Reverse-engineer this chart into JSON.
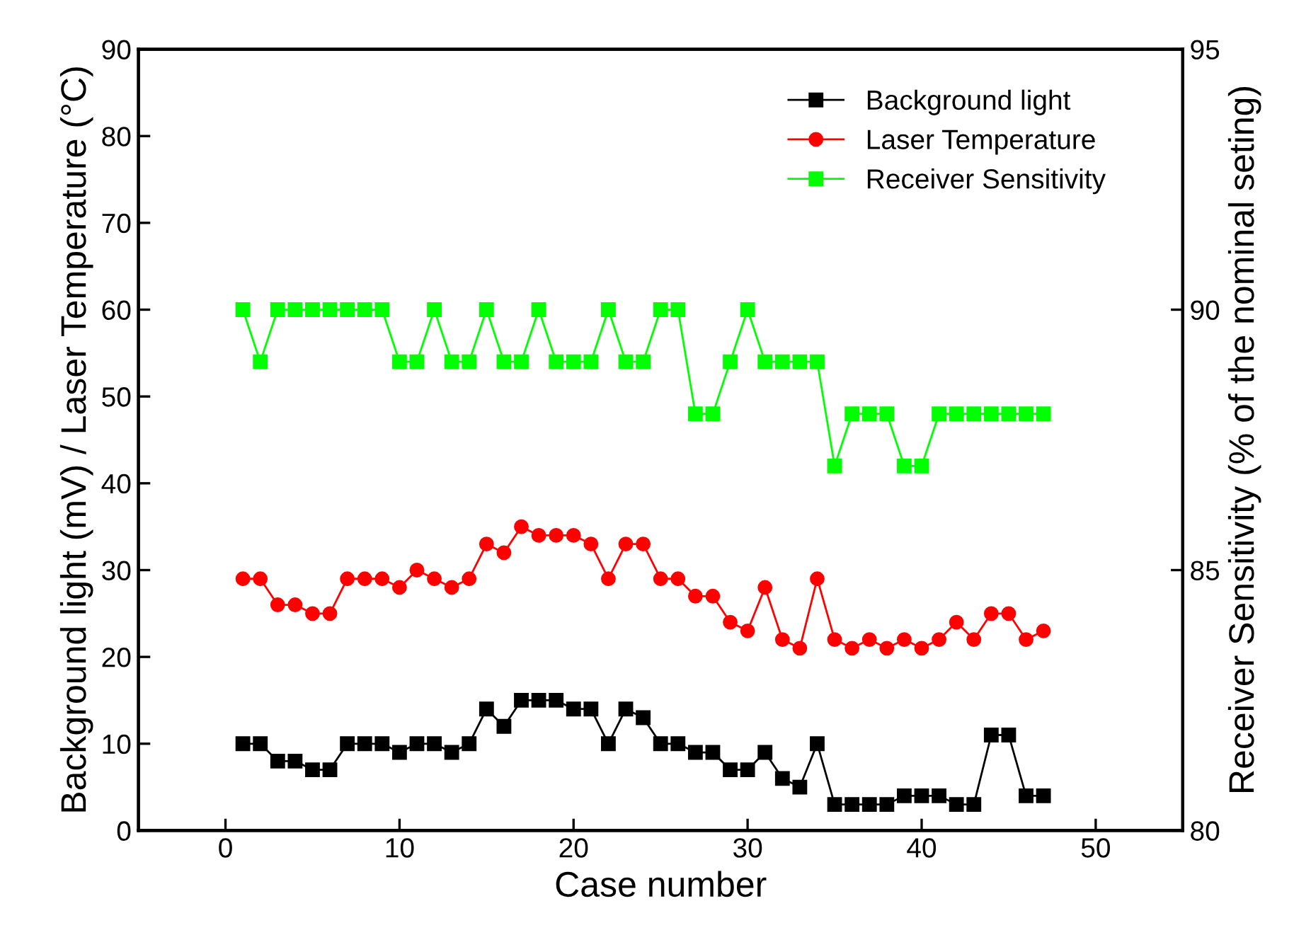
{
  "chart_data": {
    "type": "line",
    "xlabel": "Case number",
    "ylabel": "Background light (mV) / Laser Temperature (°C)",
    "y2label": "Receiver Sensitivity (% of the nominal seting)",
    "x": [
      1,
      2,
      3,
      4,
      5,
      6,
      7,
      8,
      9,
      10,
      11,
      12,
      13,
      14,
      15,
      16,
      17,
      18,
      19,
      20,
      21,
      22,
      23,
      24,
      25,
      26,
      27,
      28,
      29,
      30,
      31,
      32,
      33,
      34,
      35,
      36,
      37,
      38,
      39,
      40,
      41,
      42,
      43,
      44,
      45,
      46,
      47
    ],
    "series": [
      {
        "name": "Background light",
        "color": "#000000",
        "marker": "square",
        "values": [
          10,
          10,
          8,
          8,
          7,
          7,
          10,
          10,
          10,
          9,
          10,
          10,
          9,
          10,
          14,
          12,
          15,
          15,
          15,
          14,
          14,
          10,
          14,
          13,
          10,
          10,
          9,
          9,
          7,
          7,
          9,
          6,
          5,
          10,
          3,
          3,
          3,
          3,
          4,
          4,
          4,
          3,
          3,
          11,
          11,
          4,
          4
        ]
      },
      {
        "name": "Laser Temperature",
        "color": "#ff0000",
        "marker": "circle",
        "values": [
          29,
          29,
          26,
          26,
          25,
          25,
          29,
          29,
          29,
          28,
          30,
          29,
          28,
          29,
          33,
          32,
          35,
          34,
          34,
          34,
          33,
          29,
          33,
          33,
          29,
          29,
          27,
          27,
          24,
          23,
          28,
          22,
          21,
          29,
          22,
          21,
          22,
          21,
          22,
          21,
          22,
          24,
          22,
          25,
          25,
          22,
          23
        ]
      },
      {
        "name": "Receiver Sensitivity",
        "color": "#00ff00",
        "marker": "square",
        "axis": "y2",
        "values": [
          90,
          89,
          90,
          90,
          90,
          90,
          90,
          90,
          90,
          89,
          89,
          90,
          89,
          89,
          90,
          89,
          89,
          90,
          89,
          89,
          89,
          90,
          89,
          89,
          90,
          90,
          88,
          88,
          89,
          90,
          89,
          89,
          89,
          89,
          87,
          88,
          88,
          88,
          87,
          87,
          88,
          88,
          88,
          88,
          88,
          88,
          88
        ]
      }
    ],
    "xlim": [
      -5,
      55
    ],
    "xticks": [
      0,
      10,
      20,
      30,
      40,
      50
    ],
    "ylim": [
      0,
      90
    ],
    "yticks": [
      0,
      10,
      20,
      30,
      40,
      50,
      60,
      70,
      80,
      90
    ],
    "y2lim": [
      80,
      95
    ],
    "y2ticks": [
      80,
      85,
      90,
      95
    ],
    "legend": "top right",
    "grid": false,
    "line_style": "solid"
  }
}
